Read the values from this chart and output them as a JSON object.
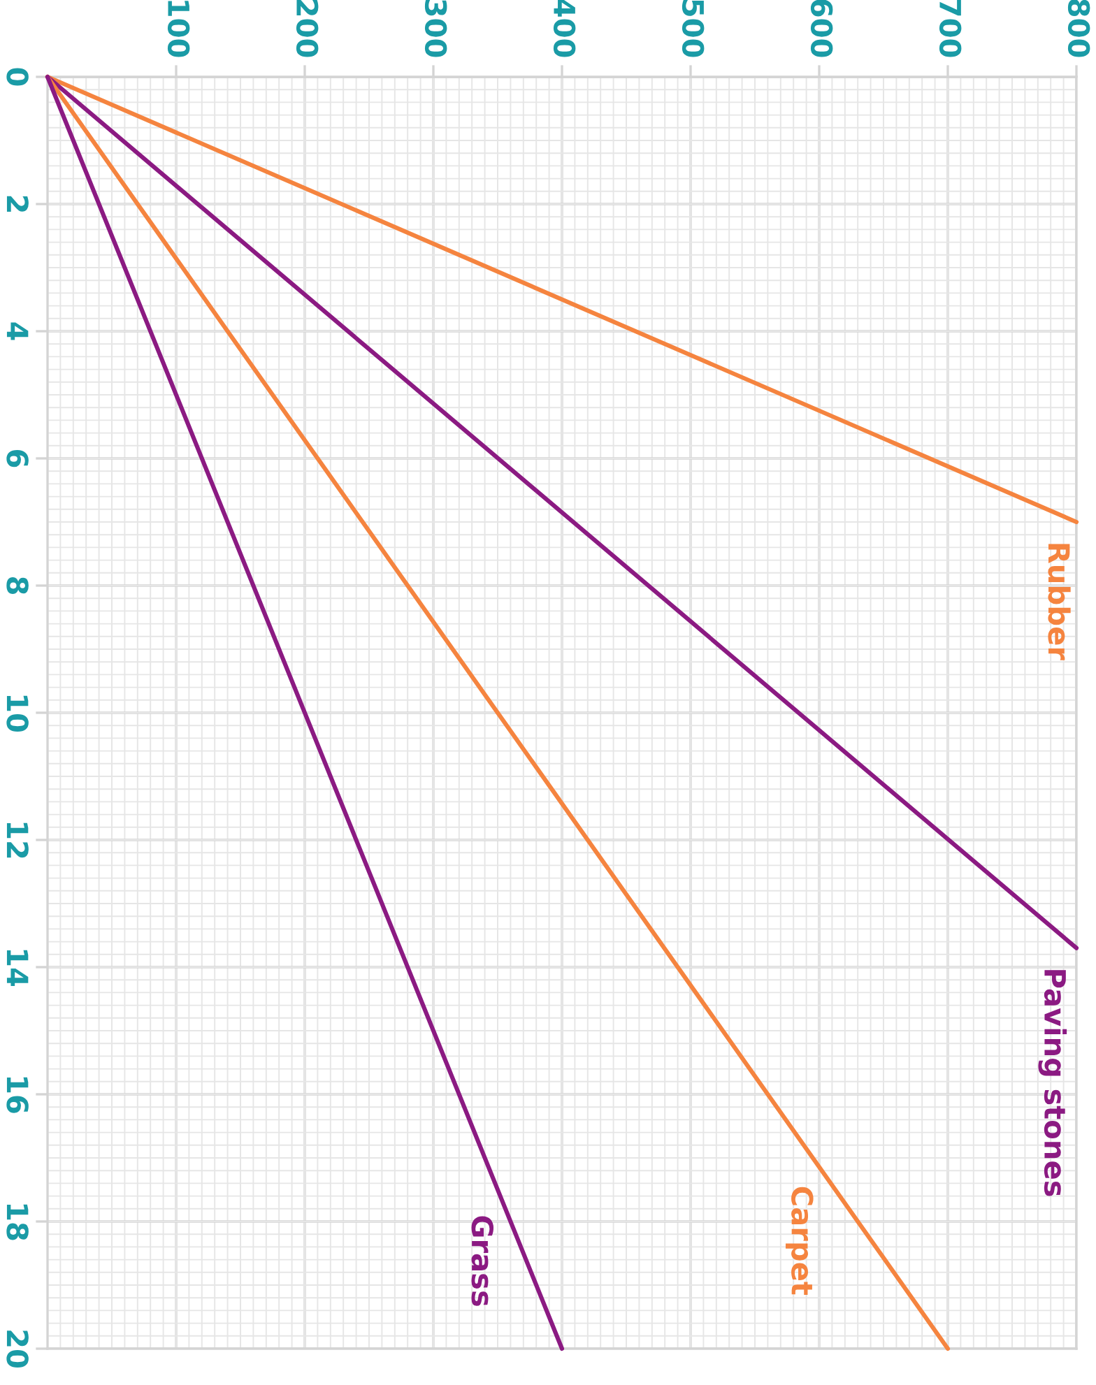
{
  "chart_data": {
    "type": "line",
    "xlim": [
      0,
      800
    ],
    "ylim": [
      20,
      0
    ],
    "xticks": [
      100,
      200,
      300,
      400,
      500,
      600,
      700,
      800
    ],
    "yticks": [
      0,
      2,
      4,
      6,
      8,
      10,
      12,
      14,
      16,
      18,
      20
    ],
    "grid": true,
    "legend": false,
    "marker": "none",
    "line_style": "solid",
    "series": [
      {
        "name": "Rubber",
        "color": "#f5843f",
        "x": [
          0,
          800
        ],
        "values": [
          0,
          7.0
        ]
      },
      {
        "name": "Paving stones",
        "color": "#8b1a82",
        "x": [
          0,
          800
        ],
        "values": [
          0,
          13.7
        ]
      },
      {
        "name": "Carpet",
        "color": "#f5843f",
        "x": [
          0,
          700
        ],
        "values": [
          0,
          20
        ]
      },
      {
        "name": "Grass",
        "color": "#8b1a82",
        "x": [
          0,
          400
        ],
        "values": [
          0,
          20
        ]
      }
    ]
  }
}
